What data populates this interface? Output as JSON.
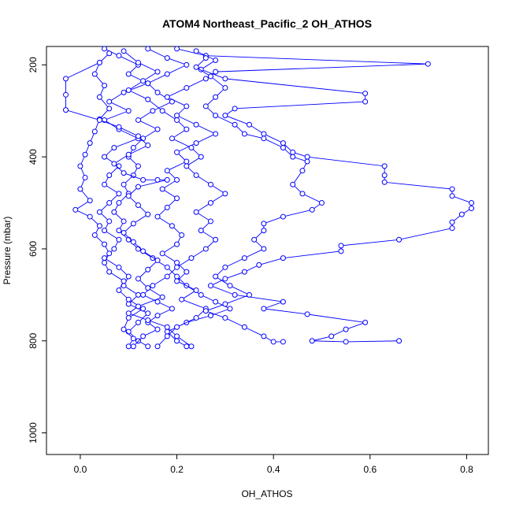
{
  "chart_data": {
    "type": "line",
    "title": "ATOM4 Northeast_Pacific_2 OH_ATHOS",
    "xlabel": "OH_ATHOS",
    "ylabel": "Pressure (mbar)",
    "xlim": [
      -0.07,
      0.845
    ],
    "ylim": [
      1047,
      160
    ],
    "y_reversed": true,
    "x_ticks": [
      0.0,
      0.2,
      0.4,
      0.6,
      0.8
    ],
    "x_tick_labels": [
      "0.0",
      "0.2",
      "0.4",
      "0.6",
      "0.8"
    ],
    "y_ticks": [
      200,
      400,
      600,
      800,
      1000
    ],
    "y_tick_labels": [
      "200",
      "400",
      "600",
      "800",
      "1000"
    ],
    "grid": false,
    "legend": "none",
    "marker": "open-circle",
    "series_color": "#0000ff",
    "series": [
      {
        "points": [
          [
            0.05,
            165
          ],
          [
            0.08,
            180
          ],
          [
            0.12,
            200
          ],
          [
            0.1,
            220
          ],
          [
            0.14,
            240
          ],
          [
            0.09,
            260
          ],
          [
            0.06,
            280
          ],
          [
            0.1,
            300
          ],
          [
            0.05,
            320
          ],
          [
            0.08,
            340
          ],
          [
            0.12,
            360
          ],
          [
            0.07,
            380
          ],
          [
            0.05,
            400
          ],
          [
            0.08,
            420
          ],
          [
            0.06,
            440
          ],
          [
            0.05,
            460
          ],
          [
            0.08,
            480
          ],
          [
            0.06,
            500
          ],
          [
            0.04,
            520
          ],
          [
            0.06,
            540
          ],
          [
            0.05,
            560
          ],
          [
            0.08,
            580
          ],
          [
            0.07,
            600
          ],
          [
            0.05,
            620
          ],
          [
            0.08,
            640
          ],
          [
            0.1,
            660
          ],
          [
            0.09,
            680
          ],
          [
            0.12,
            700
          ],
          [
            0.1,
            720
          ],
          [
            0.14,
            740
          ],
          [
            0.12,
            760
          ],
          [
            0.1,
            780
          ],
          [
            0.12,
            800
          ],
          [
            0.14,
            812
          ]
        ]
      },
      {
        "points": [
          [
            0.14,
            165
          ],
          [
            0.18,
            185
          ],
          [
            0.22,
            200
          ],
          [
            0.18,
            220
          ],
          [
            0.14,
            240
          ],
          [
            0.16,
            260
          ],
          [
            0.19,
            280
          ],
          [
            0.15,
            300
          ],
          [
            0.12,
            320
          ],
          [
            0.16,
            340
          ],
          [
            0.13,
            360
          ],
          [
            0.11,
            380
          ],
          [
            0.1,
            400
          ],
          [
            0.12,
            420
          ],
          [
            0.11,
            440
          ],
          [
            0.09,
            460
          ],
          [
            0.1,
            480
          ],
          [
            0.08,
            500
          ],
          [
            0.07,
            520
          ],
          [
            0.09,
            540
          ],
          [
            0.08,
            560
          ],
          [
            0.1,
            580
          ],
          [
            0.12,
            600
          ],
          [
            0.15,
            620
          ],
          [
            0.18,
            640
          ],
          [
            0.2,
            660
          ],
          [
            0.22,
            680
          ],
          [
            0.25,
            700
          ],
          [
            0.28,
            715
          ],
          [
            0.31,
            730
          ],
          [
            0.27,
            745
          ],
          [
            0.22,
            760
          ],
          [
            0.18,
            780
          ],
          [
            0.2,
            800
          ],
          [
            0.22,
            812
          ]
        ]
      },
      {
        "points": [
          [
            0.2,
            165
          ],
          [
            0.26,
            180
          ],
          [
            0.72,
            198
          ],
          [
            0.28,
            215
          ],
          [
            0.26,
            230
          ],
          [
            0.22,
            250
          ],
          [
            0.18,
            270
          ],
          [
            0.22,
            290
          ],
          [
            0.2,
            310
          ],
          [
            0.24,
            330
          ],
          [
            0.28,
            350
          ],
          [
            0.24,
            370
          ],
          [
            0.2,
            390
          ],
          [
            0.22,
            410
          ],
          [
            0.18,
            430
          ],
          [
            0.2,
            450
          ],
          [
            0.17,
            470
          ],
          [
            0.2,
            490
          ],
          [
            0.18,
            510
          ],
          [
            0.16,
            530
          ],
          [
            0.19,
            550
          ],
          [
            0.21,
            570
          ],
          [
            0.2,
            590
          ],
          [
            0.17,
            610
          ],
          [
            0.2,
            630
          ],
          [
            0.22,
            650
          ],
          [
            0.2,
            670
          ],
          [
            0.24,
            690
          ],
          [
            0.21,
            710
          ],
          [
            0.26,
            730
          ],
          [
            0.24,
            750
          ],
          [
            0.2,
            770
          ],
          [
            0.18,
            790
          ],
          [
            0.16,
            812
          ]
        ]
      },
      {
        "points": [
          [
            0.24,
            170
          ],
          [
            0.28,
            190
          ],
          [
            0.25,
            210
          ],
          [
            0.3,
            230
          ],
          [
            0.59,
            262
          ],
          [
            0.59,
            280
          ],
          [
            0.32,
            295
          ],
          [
            0.3,
            310
          ],
          [
            0.35,
            330
          ],
          [
            0.38,
            350
          ],
          [
            0.42,
            370
          ],
          [
            0.44,
            390
          ],
          [
            0.47,
            400
          ],
          [
            0.63,
            420
          ],
          [
            0.63,
            440
          ],
          [
            0.63,
            455
          ],
          [
            0.77,
            470
          ],
          [
            0.77,
            485
          ],
          [
            0.81,
            500
          ],
          [
            0.81,
            512
          ],
          [
            0.79,
            525
          ],
          [
            0.77,
            542
          ],
          [
            0.77,
            555
          ],
          [
            0.66,
            580
          ],
          [
            0.54,
            593
          ],
          [
            0.54,
            605
          ],
          [
            0.42,
            620
          ],
          [
            0.37,
            635
          ],
          [
            0.34,
            650
          ],
          [
            0.3,
            665
          ],
          [
            0.27,
            680
          ],
          [
            0.32,
            700
          ],
          [
            0.42,
            715
          ],
          [
            0.38,
            730
          ],
          [
            0.47,
            742
          ],
          [
            0.59,
            760
          ],
          [
            0.55,
            775
          ],
          [
            0.52,
            790
          ],
          [
            0.48,
            800
          ],
          [
            0.55,
            802
          ],
          [
            0.66,
            800
          ]
        ]
      },
      {
        "points": [
          [
            0.26,
            185
          ],
          [
            0.24,
            205
          ],
          [
            0.27,
            225
          ],
          [
            0.3,
            250
          ],
          [
            0.28,
            270
          ],
          [
            0.26,
            290
          ],
          [
            0.28,
            310
          ],
          [
            0.32,
            330
          ],
          [
            0.34,
            350
          ],
          [
            0.38,
            360
          ],
          [
            0.42,
            380
          ],
          [
            0.44,
            400
          ],
          [
            0.47,
            410
          ],
          [
            0.46,
            430
          ],
          [
            0.44,
            460
          ],
          [
            0.46,
            480
          ],
          [
            0.5,
            500
          ],
          [
            0.48,
            515
          ],
          [
            0.42,
            530
          ],
          [
            0.38,
            545
          ],
          [
            0.38,
            560
          ],
          [
            0.36,
            580
          ],
          [
            0.38,
            600
          ],
          [
            0.34,
            620
          ],
          [
            0.3,
            640
          ],
          [
            0.28,
            660
          ],
          [
            0.31,
            680
          ],
          [
            0.35,
            700
          ],
          [
            0.3,
            720
          ],
          [
            0.26,
            735
          ],
          [
            0.3,
            750
          ],
          [
            0.34,
            770
          ],
          [
            0.38,
            790
          ],
          [
            0.4,
            802
          ],
          [
            0.42,
            802
          ]
        ]
      },
      {
        "points": [
          [
            0.04,
            195
          ],
          [
            0.03,
            220
          ],
          [
            0.05,
            245
          ],
          [
            0.04,
            270
          ],
          [
            0.06,
            295
          ],
          [
            0.04,
            318
          ],
          [
            0.03,
            345
          ],
          [
            0.02,
            370
          ],
          [
            0.01,
            395
          ],
          [
            0.0,
            420
          ],
          [
            0.01,
            445
          ],
          [
            0.0,
            470
          ],
          [
            0.02,
            495
          ],
          [
            -0.01,
            515
          ],
          [
            0.02,
            530
          ],
          [
            0.04,
            550
          ],
          [
            0.03,
            570
          ],
          [
            0.05,
            590
          ],
          [
            0.06,
            610
          ],
          [
            0.05,
            630
          ],
          [
            0.06,
            650
          ],
          [
            0.09,
            670
          ],
          [
            0.08,
            690
          ],
          [
            0.1,
            710
          ],
          [
            0.13,
            730
          ],
          [
            0.1,
            750
          ],
          [
            0.09,
            775
          ],
          [
            0.11,
            795
          ],
          [
            0.1,
            812
          ]
        ]
      },
      {
        "points": [
          [
            0.09,
            170
          ],
          [
            0.12,
            195
          ],
          [
            0.16,
            215
          ],
          [
            0.13,
            235
          ],
          [
            0.1,
            255
          ],
          [
            0.14,
            275
          ],
          [
            0.17,
            300
          ],
          [
            0.2,
            320
          ],
          [
            0.22,
            340
          ],
          [
            0.19,
            360
          ],
          [
            0.23,
            380
          ],
          [
            0.25,
            400
          ],
          [
            0.22,
            420
          ],
          [
            0.24,
            440
          ],
          [
            0.27,
            460
          ],
          [
            0.3,
            480
          ],
          [
            0.27,
            500
          ],
          [
            0.24,
            520
          ],
          [
            0.27,
            540
          ],
          [
            0.25,
            560
          ],
          [
            0.28,
            580
          ],
          [
            0.26,
            600
          ],
          [
            0.23,
            620
          ],
          [
            0.2,
            640
          ],
          [
            0.18,
            660
          ],
          [
            0.15,
            680
          ],
          [
            0.13,
            700
          ],
          [
            0.16,
            715
          ],
          [
            0.19,
            730
          ],
          [
            0.16,
            745
          ],
          [
            0.14,
            760
          ],
          [
            0.16,
            775
          ],
          [
            0.13,
            790
          ],
          [
            0.11,
            812
          ]
        ]
      },
      {
        "points": [
          [
            0.06,
            175
          ],
          [
            0.04,
            195
          ],
          [
            -0.03,
            230
          ],
          [
            -0.03,
            265
          ],
          [
            -0.03,
            298
          ],
          [
            0.04,
            320
          ],
          [
            0.08,
            335
          ],
          [
            0.12,
            355
          ],
          [
            0.14,
            375
          ],
          [
            0.1,
            395
          ],
          [
            0.07,
            415
          ],
          [
            0.09,
            435
          ],
          [
            0.13,
            450
          ],
          [
            0.16,
            450
          ],
          [
            0.18,
            450
          ],
          [
            0.12,
            465
          ],
          [
            0.1,
            485
          ],
          [
            0.12,
            505
          ],
          [
            0.14,
            525
          ],
          [
            0.11,
            545
          ],
          [
            0.09,
            565
          ],
          [
            0.11,
            585
          ],
          [
            0.13,
            605
          ],
          [
            0.16,
            625
          ],
          [
            0.14,
            645
          ],
          [
            0.12,
            665
          ],
          [
            0.14,
            685
          ],
          [
            0.17,
            705
          ],
          [
            0.12,
            725
          ],
          [
            0.1,
            740
          ],
          [
            0.14,
            755
          ],
          [
            0.18,
            770
          ],
          [
            0.2,
            790
          ],
          [
            0.23,
            812
          ]
        ]
      }
    ]
  }
}
